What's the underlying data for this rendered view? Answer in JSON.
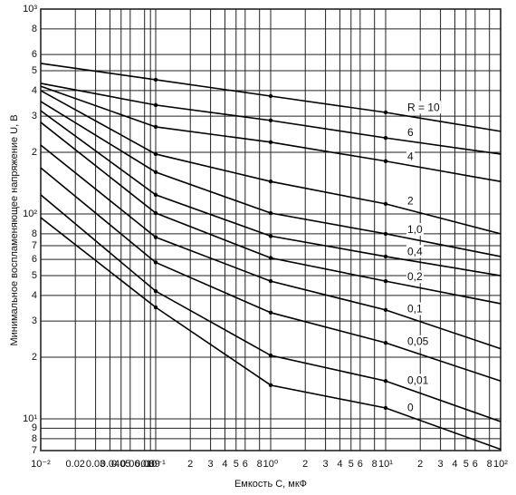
{
  "chart_data": {
    "type": "line",
    "log_x": true,
    "log_y": true,
    "grid": true,
    "xlabel": "Емкость С, мкФ",
    "ylabel": "Минимальное воспламеняющее напряжение U, В",
    "x": [
      0.01,
      0.1,
      1,
      10,
      100
    ],
    "xlim": [
      0.01,
      100
    ],
    "ylim": [
      7,
      1000
    ],
    "xticks": [
      {
        "value": 0.01,
        "label": "10⁻²"
      },
      0.02,
      0.03,
      0.04,
      0.05,
      0.06,
      0.08,
      0.09,
      {
        "value": 0.1,
        "label": "10⁻¹"
      },
      {
        "value": 0.2,
        "label": "2"
      },
      {
        "value": 0.3,
        "label": "3"
      },
      {
        "value": 0.4,
        "label": "4"
      },
      {
        "value": 0.5,
        "label": "5"
      },
      {
        "value": 0.6,
        "label": "6"
      },
      {
        "value": 0.8,
        "label": "8"
      },
      {
        "value": 1,
        "label": "10⁰"
      },
      {
        "value": 2,
        "label": "2"
      },
      {
        "value": 3,
        "label": "3"
      },
      {
        "value": 4,
        "label": "4"
      },
      {
        "value": 5,
        "label": "5"
      },
      {
        "value": 6,
        "label": "6"
      },
      {
        "value": 8,
        "label": "8"
      },
      {
        "value": 10,
        "label": "10¹"
      },
      {
        "value": 20,
        "label": "2"
      },
      {
        "value": 30,
        "label": "3"
      },
      {
        "value": 40,
        "label": "4"
      },
      {
        "value": 50,
        "label": "5"
      },
      {
        "value": 60,
        "label": "6"
      },
      {
        "value": 80,
        "label": "8"
      },
      {
        "value": 100,
        "label": "10²"
      }
    ],
    "yticks": [
      7,
      8,
      9,
      {
        "value": 10,
        "label": "10¹"
      },
      {
        "value": 20,
        "label": "2"
      },
      {
        "value": 30,
        "label": "3"
      },
      {
        "value": 40,
        "label": "4"
      },
      {
        "value": 50,
        "label": "5"
      },
      {
        "value": 60,
        "label": "6"
      },
      {
        "value": 70,
        "label": "7"
      },
      {
        "value": 80,
        "label": "8"
      },
      {
        "value": 100,
        "label": "10²"
      },
      {
        "value": 200,
        "label": "2"
      },
      {
        "value": 300,
        "label": "3"
      },
      {
        "value": 400,
        "label": "4"
      },
      {
        "value": 500,
        "label": "5"
      },
      {
        "value": 600,
        "label": "6"
      },
      {
        "value": 800,
        "label": "8"
      },
      {
        "value": 1000,
        "label": "10³"
      }
    ],
    "series": [
      {
        "name": "R = 10",
        "color": "#000000",
        "values": [
          543,
          452,
          376,
          313,
          253
        ]
      },
      {
        "name": "6",
        "color": "#000000",
        "values": [
          434,
          340,
          286,
          235,
          196
        ]
      },
      {
        "name": "4",
        "color": "#000000",
        "values": [
          420,
          266,
          224,
          181,
          144
        ]
      },
      {
        "name": "2",
        "color": "#000000",
        "values": [
          400,
          196,
          144,
          112,
          80
        ]
      },
      {
        "name": "1,0",
        "color": "#000000",
        "values": [
          354,
          160,
          101,
          80,
          62
        ]
      },
      {
        "name": "0,4",
        "color": "#000000",
        "values": [
          319,
          124,
          78,
          62,
          50
        ]
      },
      {
        "name": "0,2",
        "color": "#000000",
        "values": [
          280,
          101,
          61,
          47,
          36.5
        ]
      },
      {
        "name": "0,1",
        "color": "#000000",
        "values": [
          217,
          77,
          47,
          34,
          22
        ]
      },
      {
        "name": "0,05",
        "color": "#000000",
        "values": [
          168,
          58,
          33,
          23.5,
          15.3
        ]
      },
      {
        "name": "0,01",
        "color": "#000000",
        "values": [
          124,
          42,
          20.4,
          15.3,
          9.7
        ]
      },
      {
        "name": "0",
        "color": "#000000",
        "values": [
          96,
          35,
          14.6,
          11.3,
          7.1
        ]
      }
    ]
  }
}
